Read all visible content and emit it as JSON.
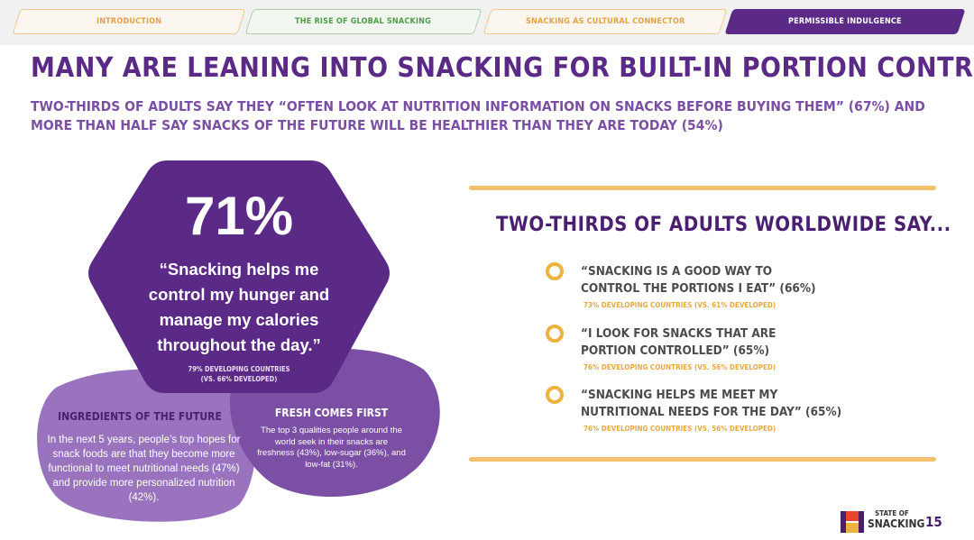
{
  "tabs": [
    {
      "label": "INTRODUCTION"
    },
    {
      "label": "THE RISE OF GLOBAL SNACKING"
    },
    {
      "label": "SNACKING AS CULTURAL CONNECTOR"
    },
    {
      "label": "PERMISSIBLE INDULGENCE"
    }
  ],
  "headline": "MANY ARE LEANING INTO SNACKING FOR BUILT-IN PORTION CONTROL",
  "subhead": "TWO-THIRDS OF ADULTS SAY THEY “OFTEN LOOK AT NUTRITION INFORMATION ON SNACKS BEFORE BUYING THEM” (67%) AND MORE THAN HALF SAY SNACKS OF THE FUTURE WILL BE HEALTHIER THAN THEY ARE TODAY (54%)",
  "hexagon": {
    "percent": "71%",
    "quote": "“Snacking helps me control my hunger and manage my calories throughout the day.”",
    "note_line1": "79% DEVELOPING COUNTRIES",
    "note_line2": "(VS. 66% DEVELOPED)"
  },
  "ingredients": {
    "title": "INGREDIENTS OF THE FUTURE",
    "text": "In the next 5 years, people’s top hopes for snack foods are that they become more functional to meet nutritional needs (47%) and provide more personalized nutrition (42%)."
  },
  "fresh": {
    "title": "FRESH COMES FIRST",
    "text": "The top 3 qualities people around the world seek in their snacks are freshness (43%), low-sugar (36%), and low-fat (31%)."
  },
  "panel": {
    "title": "TWO-THIRDS OF ADULTS WORLDWIDE SAY...",
    "stats": [
      {
        "line1": "“SNACKING IS A GOOD WAY TO",
        "line2": "CONTROL THE PORTIONS I EAT” (66%)",
        "note": "73% DEVELOPING COUNTRIES (VS. 61% DEVELOPED)"
      },
      {
        "line1": "“I LOOK FOR SNACKS THAT ARE",
        "line2": "PORTION CONTROLLED” (65%)",
        "note": "76% DEVELOPING COUNTRIES (VS. 56% DEVELOPED)"
      },
      {
        "line1": "“SNACKING HELPS ME MEET MY",
        "line2": "NUTRITIONAL NEEDS FOR THE DAY” (65%)",
        "note": "76% DEVELOPING COUNTRIES (VS. 56% DEVELOPED)"
      }
    ]
  },
  "footer": {
    "logo_line1": "STATE OF",
    "logo_line2": "SNACKING",
    "page_number": "15"
  },
  "colors": {
    "purple_dark": "#5b2a86",
    "purple_mid": "#7b4fa3",
    "purple_light": "#9a73be",
    "gold": "#ecb33e"
  }
}
